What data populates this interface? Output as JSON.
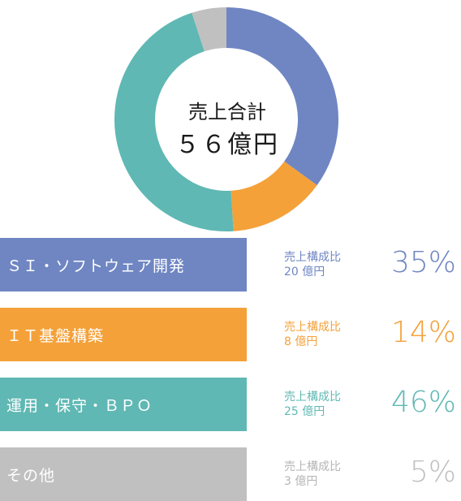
{
  "center": {
    "label": "売上合計",
    "value": "５６億円"
  },
  "chart_data": {
    "type": "pie",
    "title": "売上合計 56億円",
    "categories": [
      "ＳＩ・ソフトウェア開発",
      "ＩＴ基盤構築",
      "運用・保守・ＢＰＯ",
      "その他"
    ],
    "values": [
      35,
      14,
      46,
      5
    ],
    "amounts": [
      "20 億円",
      "8 億円",
      "25 億円",
      "3 億円"
    ],
    "colors": [
      "#6f86c3",
      "#f4a13a",
      "#5fb8b3",
      "#c0c0c0"
    ]
  },
  "segments": [
    {
      "label": "ＳＩ・ソフトウェア開発",
      "ratio_label": "売上構成比",
      "amount": "20 億円",
      "percent": "35%",
      "color": "#6f86c3"
    },
    {
      "label": "ＩＴ基盤構築",
      "ratio_label": "売上構成比",
      "amount": "8 億円",
      "percent": "14%",
      "color": "#f4a13a"
    },
    {
      "label": "運用・保守・ＢＰＯ",
      "ratio_label": "売上構成比",
      "amount": "25 億円",
      "percent": "46%",
      "color": "#5fb8b3"
    },
    {
      "label": "その他",
      "ratio_label": "売上構成比",
      "amount": "3 億円",
      "percent": "5%",
      "color": "#c0c0c0"
    }
  ]
}
